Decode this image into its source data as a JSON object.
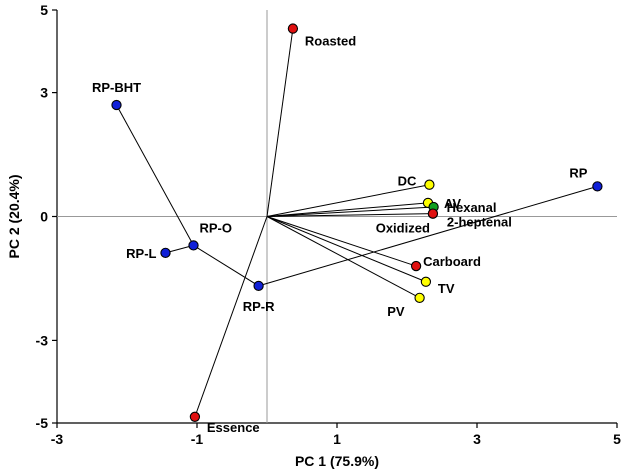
{
  "chart_data": {
    "type": "scatter",
    "title": "",
    "xlabel": "PC 1 (75.9%)",
    "ylabel": "PC 2 (20.4%)",
    "xlim": [
      -3,
      5
    ],
    "ylim": [
      -5,
      5
    ],
    "x_ticks": [
      -3,
      -1,
      1,
      3,
      5
    ],
    "y_ticks": [
      -5,
      -3,
      0,
      3,
      5
    ],
    "reference_lines": {
      "x": 0,
      "y": 0
    },
    "colors": {
      "blue": "#1020d8",
      "red": "#e01010",
      "yellow": "#ffff00",
      "green": "#10a020"
    },
    "points": [
      {
        "label": "Roasted",
        "x": 0.37,
        "y": 4.55,
        "color": "red"
      },
      {
        "label": "Essence",
        "x": -1.03,
        "y": -4.85,
        "color": "red"
      },
      {
        "label": "Oxidized",
        "x": 2.37,
        "y": 0.07,
        "color": "red"
      },
      {
        "label": "Carboard",
        "x": 2.13,
        "y": -1.2,
        "color": "red"
      },
      {
        "label": "DC",
        "x": 2.32,
        "y": 0.77,
        "color": "yellow"
      },
      {
        "label": "AV",
        "x": 2.3,
        "y": 0.33,
        "color": "yellow"
      },
      {
        "label": "TV",
        "x": 2.27,
        "y": -1.58,
        "color": "yellow"
      },
      {
        "label": "PV",
        "x": 2.18,
        "y": -1.97,
        "color": "yellow"
      },
      {
        "label": "Hexanal",
        "x": 2.38,
        "y": 0.23,
        "color": "green"
      },
      {
        "label": "2-heptenal",
        "x": 2.37,
        "y": 0.07,
        "color": "red"
      },
      {
        "label": "RP",
        "x": 4.72,
        "y": 0.73,
        "color": "blue"
      },
      {
        "label": "RP-BHT",
        "x": -2.15,
        "y": 2.7,
        "color": "blue"
      },
      {
        "label": "RP-O",
        "x": -1.05,
        "y": -0.7,
        "color": "blue"
      },
      {
        "label": "RP-L",
        "x": -1.45,
        "y": -0.88,
        "color": "blue"
      },
      {
        "label": "RP-R",
        "x": -0.12,
        "y": -1.68,
        "color": "blue"
      }
    ],
    "vectors": [
      {
        "from": [
          0,
          0
        ],
        "to": [
          0.37,
          4.55
        ]
      },
      {
        "from": [
          0,
          0
        ],
        "to": [
          -1.03,
          -4.85
        ]
      },
      {
        "from": [
          0,
          0
        ],
        "to": [
          2.32,
          0.77
        ]
      },
      {
        "from": [
          0,
          0
        ],
        "to": [
          2.3,
          0.33
        ]
      },
      {
        "from": [
          0,
          0
        ],
        "to": [
          2.38,
          0.23
        ]
      },
      {
        "from": [
          0,
          0
        ],
        "to": [
          2.37,
          0.07
        ]
      },
      {
        "from": [
          0,
          0
        ],
        "to": [
          2.13,
          -1.2
        ]
      },
      {
        "from": [
          0,
          0
        ],
        "to": [
          2.27,
          -1.58
        ]
      },
      {
        "from": [
          0,
          0
        ],
        "to": [
          2.18,
          -1.97
        ]
      }
    ],
    "connections": [
      {
        "from": "RP-BHT",
        "to": "RP-O"
      },
      {
        "from": "RP-O",
        "to": "RP-L"
      },
      {
        "from": "RP-O",
        "to": "RP-R"
      },
      {
        "from": "RP-R",
        "to": "RP"
      }
    ]
  }
}
